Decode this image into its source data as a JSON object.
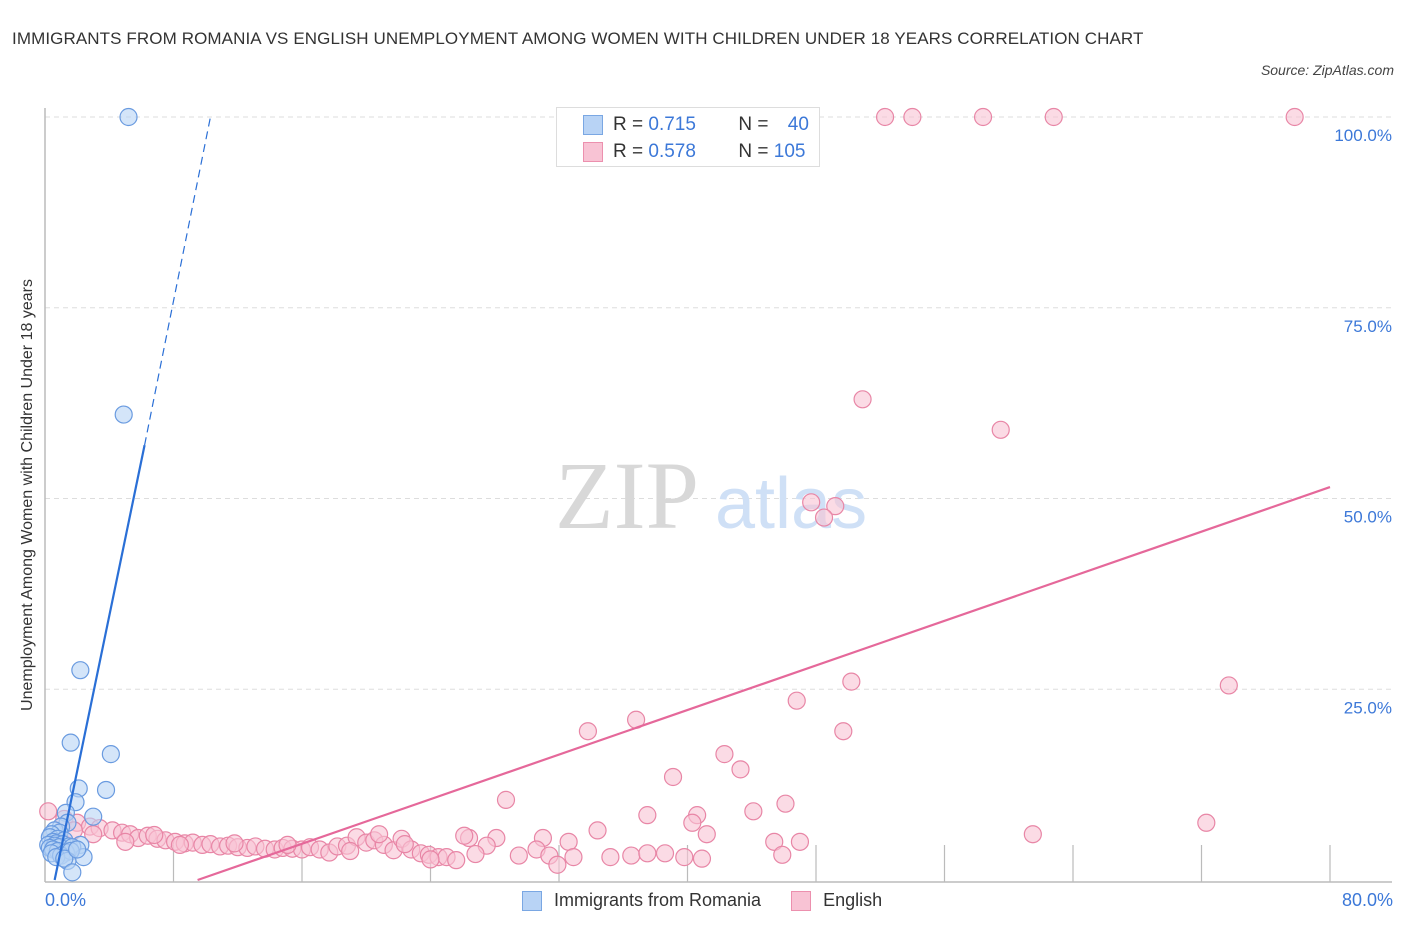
{
  "title": "IMMIGRANTS FROM ROMANIA VS ENGLISH UNEMPLOYMENT AMONG WOMEN WITH CHILDREN UNDER 18 YEARS CORRELATION CHART",
  "source": "Source: ZipAtlas.com",
  "watermark": {
    "zip": "ZIP",
    "atlas": "atlas"
  },
  "stats": {
    "series1": {
      "r_label": "R =",
      "r_value": "0.715",
      "n_label": "N =",
      "n_value": "40"
    },
    "series2": {
      "r_label": "R =",
      "r_value": "0.578",
      "n_label": "N =",
      "n_value": "105"
    }
  },
  "legend": {
    "series1": "Immigrants from Romania",
    "series2": "English"
  },
  "axes": {
    "x_min_label": "0.0%",
    "x_max_label": "80.0%",
    "y_ticks": [
      "100.0%",
      "75.0%",
      "50.0%",
      "25.0%"
    ],
    "ylabel": "Unemployment Among Women with Children Under 18 years"
  },
  "colors": {
    "blue_fill": "#b8d3f5",
    "blue_stroke": "#6a9be0",
    "blue_line": "#2a6fd6",
    "pink_fill": "#f8c3d4",
    "pink_stroke": "#e886a6",
    "pink_line": "#e5689a",
    "tick_text": "#3c78d8"
  },
  "chart_data": {
    "type": "scatter",
    "title": "Immigrants from Romania vs English Unemployment Among Women with Children Under 18 years Correlation Chart",
    "xlabel": "",
    "ylabel": "Unemployment Among Women with Children Under 18 years",
    "xlim": [
      0,
      80
    ],
    "ylim": [
      0,
      100
    ],
    "x_tick_labels": [
      "0.0%",
      "80.0%"
    ],
    "y_tick_labels": [
      "25.0%",
      "50.0%",
      "75.0%",
      "100.0%"
    ],
    "grid": true,
    "legend_position": "bottom",
    "series": [
      {
        "name": "Immigrants from Romania",
        "R": 0.715,
        "N": 40,
        "trend": {
          "x0": 0.6,
          "y0": 0.0,
          "x1": 6.2,
          "y1": 57.0,
          "dashed_to": {
            "x": 10.3,
            "y": 100.0
          }
        },
        "points": [
          [
            5.2,
            100.0
          ],
          [
            4.9,
            61.0
          ],
          [
            2.2,
            27.5
          ],
          [
            1.6,
            18.0
          ],
          [
            4.1,
            16.5
          ],
          [
            2.1,
            12.0
          ],
          [
            3.8,
            11.8
          ],
          [
            1.9,
            10.2
          ],
          [
            1.3,
            8.8
          ],
          [
            3.0,
            8.3
          ],
          [
            1.4,
            7.5
          ],
          [
            1.0,
            7.0
          ],
          [
            0.6,
            6.5
          ],
          [
            0.9,
            6.2
          ],
          [
            0.4,
            6.0
          ],
          [
            0.3,
            5.6
          ],
          [
            0.8,
            5.4
          ],
          [
            1.2,
            5.2
          ],
          [
            0.5,
            5.0
          ],
          [
            0.7,
            4.8
          ],
          [
            1.1,
            4.7
          ],
          [
            0.2,
            4.6
          ],
          [
            0.6,
            4.5
          ],
          [
            1.5,
            4.4
          ],
          [
            0.9,
            4.3
          ],
          [
            0.3,
            4.2
          ],
          [
            2.2,
            4.6
          ],
          [
            1.7,
            4.3
          ],
          [
            0.5,
            4.0
          ],
          [
            0.8,
            3.8
          ],
          [
            1.3,
            3.6
          ],
          [
            0.4,
            3.5
          ],
          [
            2.4,
            3.0
          ],
          [
            1.0,
            3.2
          ],
          [
            1.6,
            3.8
          ],
          [
            0.7,
            3.0
          ],
          [
            1.4,
            2.5
          ],
          [
            1.2,
            2.8
          ],
          [
            1.7,
            1.0
          ],
          [
            2.0,
            4.0
          ]
        ]
      },
      {
        "name": "English",
        "R": 0.578,
        "N": 105,
        "trend": {
          "x0": 9.5,
          "y0": 0.0,
          "x1": 80.0,
          "y1": 51.5
        },
        "points": [
          [
            52.3,
            100.0
          ],
          [
            54.0,
            100.0
          ],
          [
            58.4,
            100.0
          ],
          [
            62.8,
            100.0
          ],
          [
            77.8,
            100.0
          ],
          [
            50.9,
            63.0
          ],
          [
            59.5,
            59.0
          ],
          [
            47.7,
            49.5
          ],
          [
            49.2,
            49.0
          ],
          [
            48.5,
            47.5
          ],
          [
            50.2,
            26.0
          ],
          [
            73.7,
            25.5
          ],
          [
            46.8,
            23.5
          ],
          [
            36.8,
            21.0
          ],
          [
            33.8,
            19.5
          ],
          [
            49.7,
            19.5
          ],
          [
            42.3,
            16.5
          ],
          [
            43.3,
            14.5
          ],
          [
            39.1,
            13.5
          ],
          [
            28.7,
            10.5
          ],
          [
            46.1,
            10.0
          ],
          [
            44.1,
            9.0
          ],
          [
            37.5,
            8.5
          ],
          [
            40.6,
            8.5
          ],
          [
            40.3,
            7.5
          ],
          [
            72.3,
            7.5
          ],
          [
            41.2,
            6.0
          ],
          [
            61.5,
            6.0
          ],
          [
            34.4,
            6.5
          ],
          [
            31.0,
            5.5
          ],
          [
            28.1,
            5.5
          ],
          [
            26.4,
            5.5
          ],
          [
            45.4,
            5.0
          ],
          [
            47.0,
            5.0
          ],
          [
            30.6,
            4.0
          ],
          [
            32.6,
            5.0
          ],
          [
            35.2,
            3.0
          ],
          [
            36.5,
            3.2
          ],
          [
            37.5,
            3.5
          ],
          [
            38.6,
            3.5
          ],
          [
            39.8,
            3.0
          ],
          [
            40.9,
            2.8
          ],
          [
            45.9,
            3.3
          ],
          [
            31.4,
            3.2
          ],
          [
            29.5,
            3.2
          ],
          [
            27.5,
            4.5
          ],
          [
            32.9,
            3.0
          ],
          [
            31.9,
            2.0
          ],
          [
            0.2,
            9.0
          ],
          [
            1.2,
            8.0
          ],
          [
            2.0,
            7.5
          ],
          [
            2.8,
            7.0
          ],
          [
            3.4,
            6.8
          ],
          [
            4.2,
            6.5
          ],
          [
            4.8,
            6.2
          ],
          [
            5.3,
            6.0
          ],
          [
            5.8,
            5.5
          ],
          [
            6.4,
            5.8
          ],
          [
            7.0,
            5.4
          ],
          [
            7.5,
            5.2
          ],
          [
            8.1,
            5.0
          ],
          [
            8.7,
            4.8
          ],
          [
            9.2,
            4.9
          ],
          [
            9.8,
            4.6
          ],
          [
            10.3,
            4.7
          ],
          [
            10.9,
            4.4
          ],
          [
            11.4,
            4.5
          ],
          [
            12.0,
            4.3
          ],
          [
            12.6,
            4.2
          ],
          [
            13.1,
            4.4
          ],
          [
            13.7,
            4.1
          ],
          [
            14.3,
            4.0
          ],
          [
            14.8,
            4.2
          ],
          [
            15.4,
            4.1
          ],
          [
            16.0,
            4.0
          ],
          [
            16.5,
            4.3
          ],
          [
            17.1,
            4.0
          ],
          [
            17.7,
            3.6
          ],
          [
            18.2,
            4.4
          ],
          [
            18.8,
            4.5
          ],
          [
            19.4,
            5.6
          ],
          [
            20.0,
            4.9
          ],
          [
            20.5,
            5.2
          ],
          [
            21.1,
            4.6
          ],
          [
            21.7,
            3.9
          ],
          [
            22.2,
            5.4
          ],
          [
            22.8,
            4.0
          ],
          [
            23.4,
            3.5
          ],
          [
            23.9,
            3.3
          ],
          [
            24.5,
            3.0
          ],
          [
            25.0,
            3.0
          ],
          [
            25.6,
            2.6
          ],
          [
            26.1,
            5.8
          ],
          [
            26.8,
            3.4
          ],
          [
            20.8,
            6.0
          ],
          [
            24.0,
            2.7
          ],
          [
            22.4,
            4.7
          ],
          [
            1.8,
            6.5
          ],
          [
            3.0,
            6.0
          ],
          [
            5.0,
            5.0
          ],
          [
            6.8,
            5.9
          ],
          [
            8.4,
            4.6
          ],
          [
            11.8,
            4.8
          ],
          [
            15.1,
            4.6
          ],
          [
            19.0,
            3.8
          ]
        ]
      }
    ]
  }
}
